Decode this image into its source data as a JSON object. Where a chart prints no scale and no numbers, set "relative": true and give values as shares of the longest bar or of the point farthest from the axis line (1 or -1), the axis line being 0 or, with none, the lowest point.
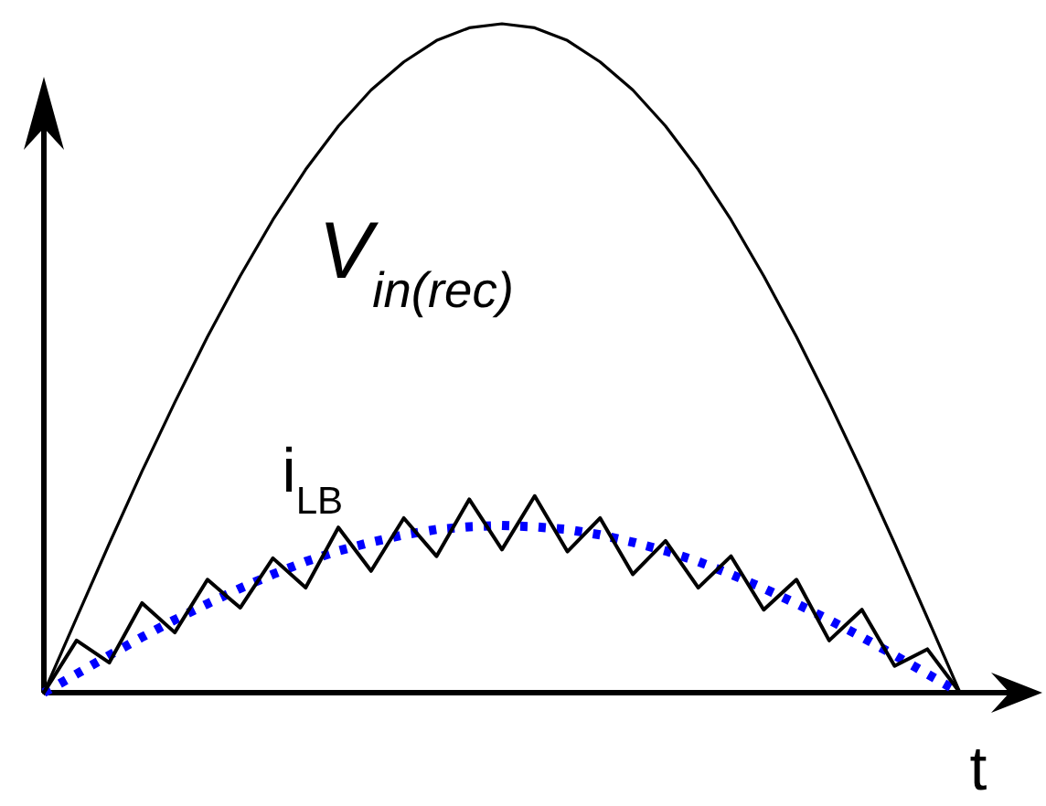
{
  "chart_data": {
    "type": "line",
    "relative": true,
    "xlabel": "t",
    "categories": [
      null,
      null,
      null,
      null,
      null,
      null,
      null,
      null,
      null,
      null,
      null,
      null,
      null,
      null,
      null,
      null,
      null,
      null,
      null,
      null,
      null,
      null,
      null,
      null,
      null,
      null,
      null,
      null,
      null
    ],
    "series": [
      {
        "name": "V$_{in(rec)}$",
        "color": "#000000",
        "line_style": "solid",
        "values": [
          0,
          0.112,
          0.223,
          0.331,
          0.434,
          0.532,
          0.623,
          0.707,
          0.782,
          0.847,
          0.901,
          0.943,
          0.975,
          0.994,
          1,
          0.994,
          0.975,
          0.943,
          0.901,
          0.847,
          0.782,
          0.707,
          0.623,
          0.532,
          0.434,
          0.331,
          0.223,
          0.112,
          0
        ]
      },
      {
        "name": "i$_{LB}$",
        "color": "#000000",
        "line_style": "solid",
        "values": [
          0,
          0.078,
          0.045,
          0.134,
          0.09,
          0.169,
          0.127,
          0.201,
          0.157,
          0.247,
          0.182,
          0.261,
          0.204,
          0.289,
          0.214,
          0.294,
          0.211,
          0.261,
          0.177,
          0.227,
          0.157,
          0.204,
          0.124,
          0.169,
          0.078,
          0.124,
          0.04,
          0.065,
          0
        ]
      },
      {
        "color": "#0000ff",
        "line_style": "dotted",
        "values": [
          0,
          0.028,
          0.056,
          0.083,
          0.109,
          0.133,
          0.156,
          0.177,
          0.196,
          0.212,
          0.225,
          0.236,
          0.244,
          0.248,
          0.25,
          0.248,
          0.244,
          0.236,
          0.225,
          0.212,
          0.196,
          0.177,
          0.156,
          0.133,
          0.109,
          0.083,
          0.056,
          0.028,
          0
        ]
      }
    ]
  }
}
